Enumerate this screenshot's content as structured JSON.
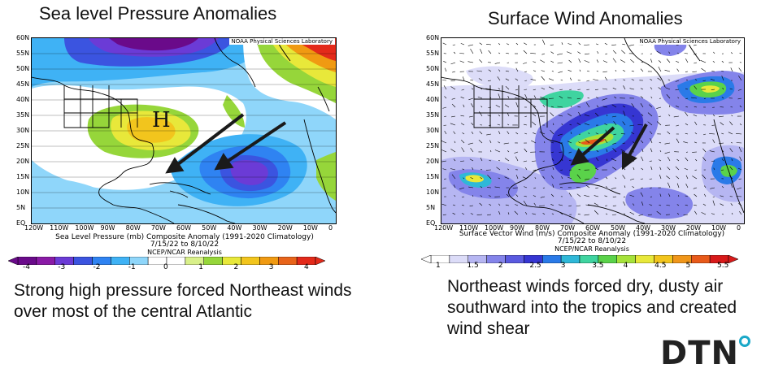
{
  "left_panel": {
    "title": "Sea level Pressure Anomalies",
    "credit": "NOAA Physical Sciences Laboratory",
    "map_label": "H",
    "subtitle_line1": "Sea Level Pressure (mb) Composite Anomaly (1991-2020 Climatology)",
    "subtitle_line2": "7/15/22 to 8/10/22",
    "reanalysis": "NCEP/NCAR Reanalysis",
    "lat_labels": [
      "60N",
      "55N",
      "50N",
      "45N",
      "40N",
      "35N",
      "30N",
      "25N",
      "20N",
      "15N",
      "10N",
      "5N",
      "EQ"
    ],
    "lon_labels": [
      "120W",
      "110W",
      "100W",
      "90W",
      "80W",
      "70W",
      "60W",
      "50W",
      "40W",
      "30W",
      "20W",
      "10W",
      "0"
    ],
    "colorbar_ticks": [
      "-4",
      "-3",
      "-2",
      "-1",
      "0",
      "1",
      "2",
      "3",
      "4"
    ],
    "colorbar_colors": [
      "#6a0a8a",
      "#8a1aa6",
      "#6b3bd6",
      "#3b54e0",
      "#2f83f2",
      "#3fb2f5",
      "#8fd6fa",
      "#ffffff",
      "#ffffff",
      "#d9f08a",
      "#96d63a",
      "#e8e83a",
      "#f2c51d",
      "#f09a12",
      "#e8641a",
      "#e32a1a"
    ],
    "caption": "Strong high pressure forced Northeast winds over most of the central Atlantic"
  },
  "right_panel": {
    "title": "Surface Wind Anomalies",
    "credit": "NOAA Physical Sciences Laboratory",
    "subtitle_line1": "Surface Vector Wind (m/s) Composite Anomaly (1991-2020 Climatology)",
    "subtitle_line2": "7/15/22 to 8/10/22",
    "reanalysis": "NCEP/NCAR Reanalysis",
    "lat_labels": [
      "60N",
      "55N",
      "50N",
      "45N",
      "40N",
      "35N",
      "30N",
      "25N",
      "20N",
      "15N",
      "10N",
      "5N",
      "EQ"
    ],
    "lon_labels": [
      "120W",
      "110W",
      "100W",
      "90W",
      "80W",
      "70W",
      "60W",
      "50W",
      "40W",
      "30W",
      "20W",
      "10W",
      "0"
    ],
    "colorbar_ticks": [
      "1",
      "1.5",
      "2",
      "2.5",
      "3",
      "3.5",
      "4",
      "4.5",
      "5",
      "5.5"
    ],
    "colorbar_colors": [
      "#ffffff",
      "#dcdcf8",
      "#b6b6f2",
      "#8484ea",
      "#5a5ae0",
      "#3636d2",
      "#2a7ae8",
      "#2fb8d8",
      "#3fd4a0",
      "#5ad24a",
      "#a6e23a",
      "#e8e83a",
      "#f2c51d",
      "#f0961a",
      "#e85a1a",
      "#d81a1a"
    ],
    "caption": "Northeast winds forced dry, dusty air southward into the tropics and created wind shear"
  },
  "logo": {
    "text": "DTN",
    "dot_color": "#1aa8c8"
  }
}
